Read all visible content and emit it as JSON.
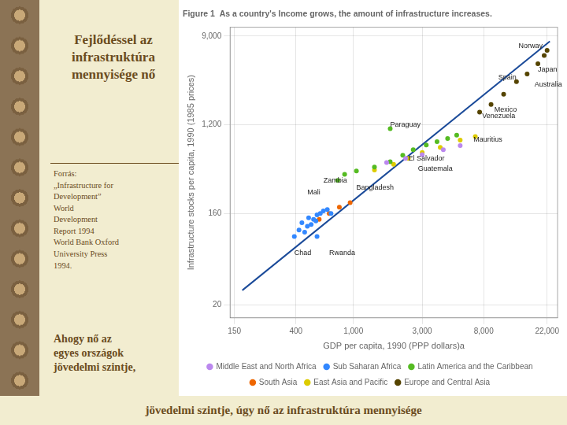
{
  "title": "Fejlődéssel az\ninfrastruktúra\nmennyisége nő",
  "source": [
    "Forrás:",
    "„Infrastructure for",
    "Development”",
    "World",
    "Development",
    "Report 1994",
    "World Bank Oxford",
    "University Press",
    "1994."
  ],
  "caption": [
    "Ahogy nő az",
    "egyes országok",
    "jövedelmi szintje,"
  ],
  "footer": "jövedelmi szintje, úgy nő az infrastruktúra mennyisége",
  "chart_data": {
    "type": "scatter",
    "title": "Figure 1  As a country's Income grows, the amount of infrastructure increases.",
    "x_label": "GDP per capita, 1990 (PPP dollars)a",
    "y_label": "Infrastructure stocks per capita, 1990 (1985 prices)",
    "log": true,
    "grid": true,
    "legend": "bottom",
    "xlim": [
      140,
      26000
    ],
    "ylim": [
      15,
      11000
    ],
    "xticks": [
      150,
      400,
      {
        "value": 1000,
        "label": "1,000"
      },
      {
        "value": 3000,
        "label": "3,000"
      },
      {
        "value": 8000,
        "label": "8,000"
      },
      {
        "value": 22000,
        "label": "22,000"
      }
    ],
    "yticks": [
      20,
      160,
      {
        "value": 1200,
        "label": "1,200"
      },
      {
        "value": 9000,
        "label": "9,000"
      }
    ],
    "series": [
      {
        "name": "Middle East and North Africa",
        "color": "#BB88EE",
        "x": [
          1700,
          2300,
          3000,
          4200,
          5500
        ],
        "values": [
          510,
          560,
          610,
          680,
          750
        ]
      },
      {
        "name": "Sub Saharan Africa",
        "color": "#3388FF",
        "x": [
          390,
          420,
          440,
          460,
          490,
          510,
          530,
          560,
          590,
          480,
          550,
          620,
          660,
          700,
          560
        ],
        "values": [
          95,
          110,
          130,
          105,
          145,
          125,
          140,
          155,
          160,
          120,
          135,
          170,
          175,
          160,
          95
        ]
      },
      {
        "name": "Latin America and the Caribbean",
        "color": "#55BB22",
        "x": [
          780,
          870,
          1050,
          1400,
          1800,
          2200,
          2600,
          3200,
          3800,
          4500,
          5200,
          1800
        ],
        "values": [
          340,
          390,
          420,
          460,
          520,
          600,
          680,
          760,
          820,
          880,
          950,
          1100
        ]
      },
      {
        "name": "South Asia",
        "color": "#EE6600",
        "x": [
          580,
          680,
          800,
          950
        ],
        "values": [
          140,
          160,
          185,
          205
        ]
      },
      {
        "name": "East Asia and Pacific",
        "color": "#DDCC00",
        "x": [
          1400,
          1900,
          2400,
          3000,
          4000,
          5500,
          7000
        ],
        "values": [
          430,
          490,
          560,
          640,
          720,
          850,
          920
        ]
      },
      {
        "name": "Europe and Central Asia",
        "color": "#554400",
        "x": [
          7500,
          9000,
          11000,
          13500,
          16000,
          19000,
          21000,
          22000
        ],
        "values": [
          1600,
          1900,
          2400,
          3200,
          3800,
          4800,
          5800,
          6500
        ]
      },
      {
        "type": "line",
        "color": "#1A4A99",
        "x": [
          170,
          23000
        ],
        "values": [
          28,
          8000
        ]
      }
    ],
    "annotations": [
      {
        "text": "Norway",
        "x": 20500,
        "y": 7200,
        "align": "right"
      },
      {
        "text": "Spain",
        "x": 13500,
        "y": 3500,
        "align": "right"
      },
      {
        "text": "Japan",
        "x": 19000,
        "y": 4200,
        "align": "left"
      },
      {
        "text": "Venezuela",
        "x": 7800,
        "y": 1450,
        "align": "left"
      },
      {
        "text": "Mexico",
        "x": 9500,
        "y": 1700,
        "align": "left"
      },
      {
        "text": "Australia",
        "x": 18000,
        "y": 3000,
        "align": "left"
      },
      {
        "text": "Mauritius",
        "x": 6800,
        "y": 850,
        "align": "left"
      },
      {
        "text": "El Salvador",
        "x": 2400,
        "y": 560,
        "align": "left"
      },
      {
        "text": "Paraguay",
        "x": 1800,
        "y": 1200,
        "align": "left"
      },
      {
        "text": "Guatemala",
        "x": 2800,
        "y": 440,
        "align": "left"
      },
      {
        "text": "Bangladesh",
        "x": 1050,
        "y": 290,
        "align": "left"
      },
      {
        "text": "Zambia",
        "x": 620,
        "y": 340,
        "align": "left"
      },
      {
        "text": "Mali",
        "x": 480,
        "y": 260,
        "align": "left"
      },
      {
        "text": "Chad",
        "x": 390,
        "y": 65,
        "align": "left"
      },
      {
        "text": "Rwanda",
        "x": 680,
        "y": 65,
        "align": "left"
      }
    ]
  }
}
